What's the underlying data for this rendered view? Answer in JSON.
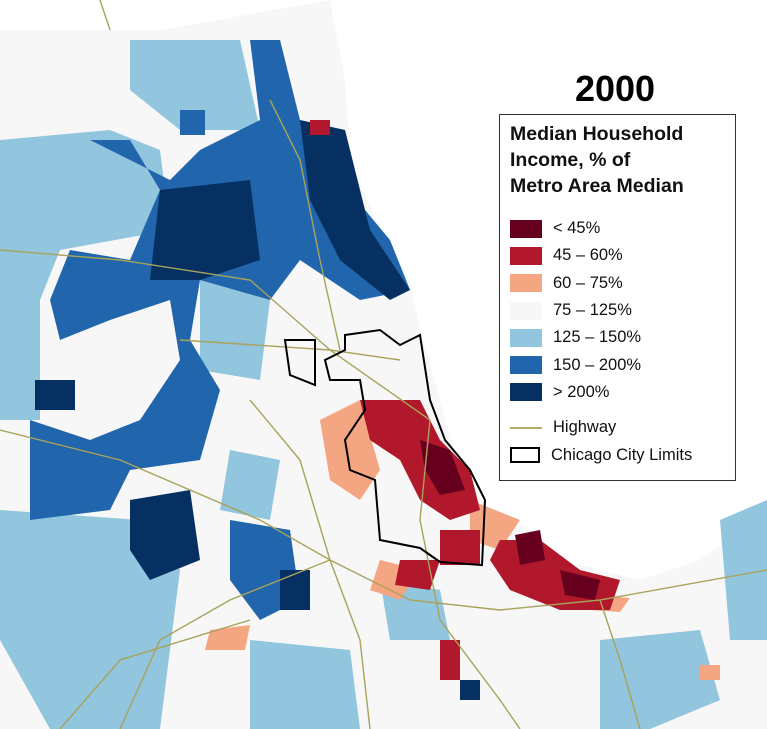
{
  "title": "2000",
  "legend": {
    "title_lines": [
      "Median Household",
      "Income, % of",
      "Metro Area Median"
    ],
    "classes": [
      {
        "label": "< 45%",
        "color": "#67001f"
      },
      {
        "label": "45 – 60%",
        "color": "#b2182b"
      },
      {
        "label": "60 – 75%",
        "color": "#f4a582"
      },
      {
        "label": "75 – 125%",
        "color": "#f7f7f7"
      },
      {
        "label": "125 – 150%",
        "color": "#92c5de"
      },
      {
        "label": "150 – 200%",
        "color": "#2166ac"
      },
      {
        "label": "> 200%",
        "color": "#053061"
      }
    ],
    "highway": {
      "label": "Highway",
      "color": "#b3ad6a"
    },
    "city_limits": {
      "label": "Chicago City Limits",
      "color": "#000000"
    }
  },
  "colors": {
    "lake": "#ffffff",
    "land": "#f7f7f7"
  }
}
